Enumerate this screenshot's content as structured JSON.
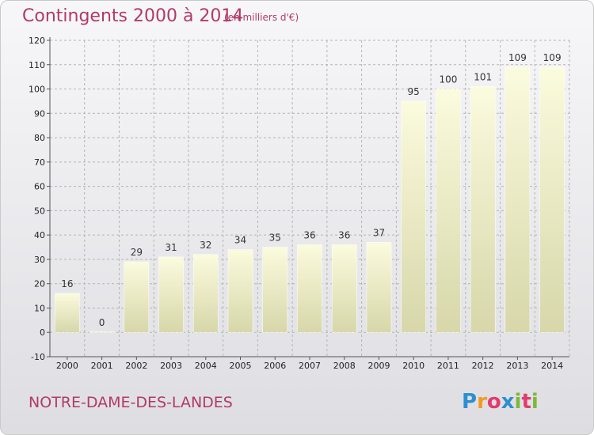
{
  "header": {
    "title": "Contingents 2000 à 2014",
    "unit": "(en milliers d'€)"
  },
  "commune": "NOTRE-DAME-DES-LANDES",
  "logo": {
    "letters": [
      "P",
      "r",
      "o",
      "x",
      "i",
      "t",
      "i"
    ],
    "colors": [
      "#2e8fd0",
      "#f39a1e",
      "#e23b6f",
      "#2e8fd0",
      "#7bb93a",
      "#e23b6f",
      "#7bb93a"
    ]
  },
  "chart_data": {
    "type": "bar",
    "categories": [
      "2000",
      "2001",
      "2002",
      "2003",
      "2004",
      "2005",
      "2006",
      "2007",
      "2008",
      "2009",
      "2010",
      "2011",
      "2012",
      "2013",
      "2014"
    ],
    "values": [
      16,
      0,
      29,
      31,
      32,
      34,
      35,
      36,
      36,
      37,
      95,
      100,
      101,
      109,
      109
    ],
    "title": "Contingents 2000 à 2014",
    "subtitle": "(en milliers d'€)",
    "xlabel": "",
    "ylabel": "",
    "ylim": [
      -10,
      120
    ],
    "yticks": [
      -10,
      0,
      10,
      20,
      30,
      40,
      50,
      60,
      70,
      80,
      90,
      100,
      110,
      120
    ],
    "grid": true,
    "colors": {
      "bar_top": "#fbfbde",
      "bar_bottom": "#d7d7aa",
      "accent": "#b23a66"
    }
  }
}
